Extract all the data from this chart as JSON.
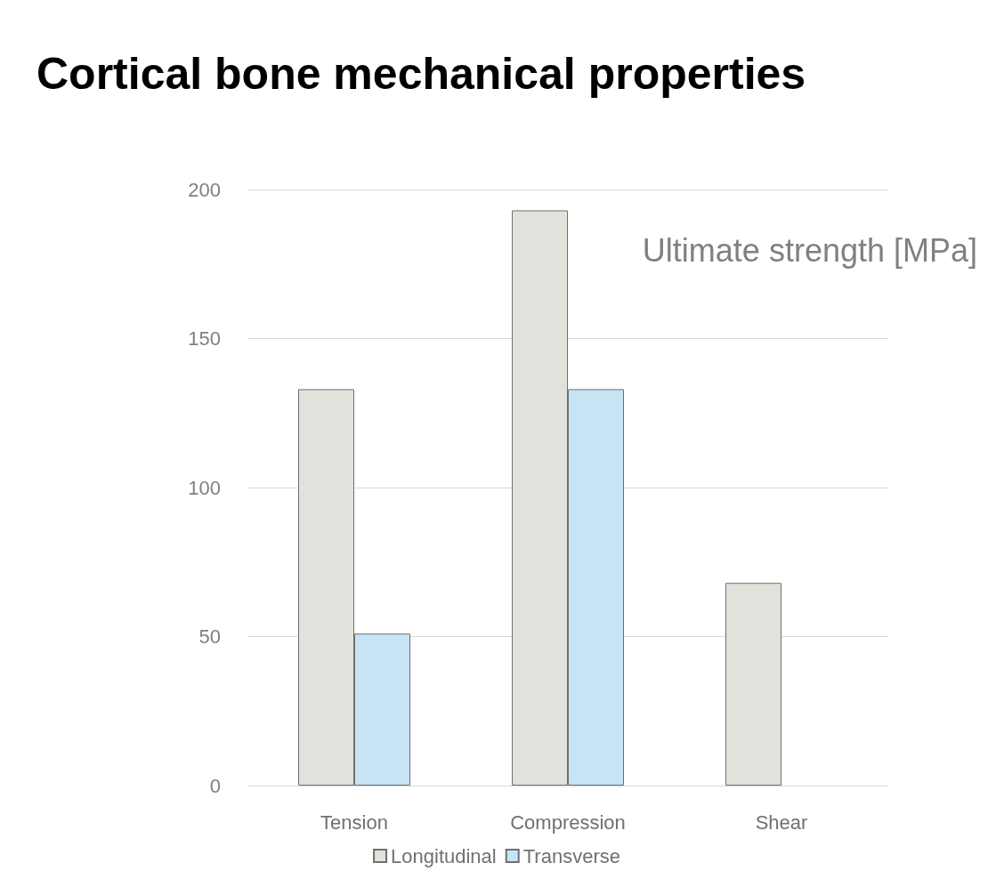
{
  "chart_data": {
    "type": "bar",
    "title": "Cortical bone mechanical properties",
    "categories": [
      "Tension",
      "Compression",
      "Shear"
    ],
    "series": [
      {
        "name": "Longitudinal",
        "color": "#e2e2dc",
        "values": [
          133,
          193,
          68
        ]
      },
      {
        "name": "Transverse",
        "color": "#c6e4f4",
        "values": [
          51,
          133,
          null
        ]
      }
    ],
    "ylim": [
      0,
      200
    ],
    "yticks": [
      0,
      50,
      100,
      150,
      200
    ],
    "grid": "y",
    "legend": "bottom",
    "annotations": [
      "Ultimate strength [MPa]"
    ]
  }
}
